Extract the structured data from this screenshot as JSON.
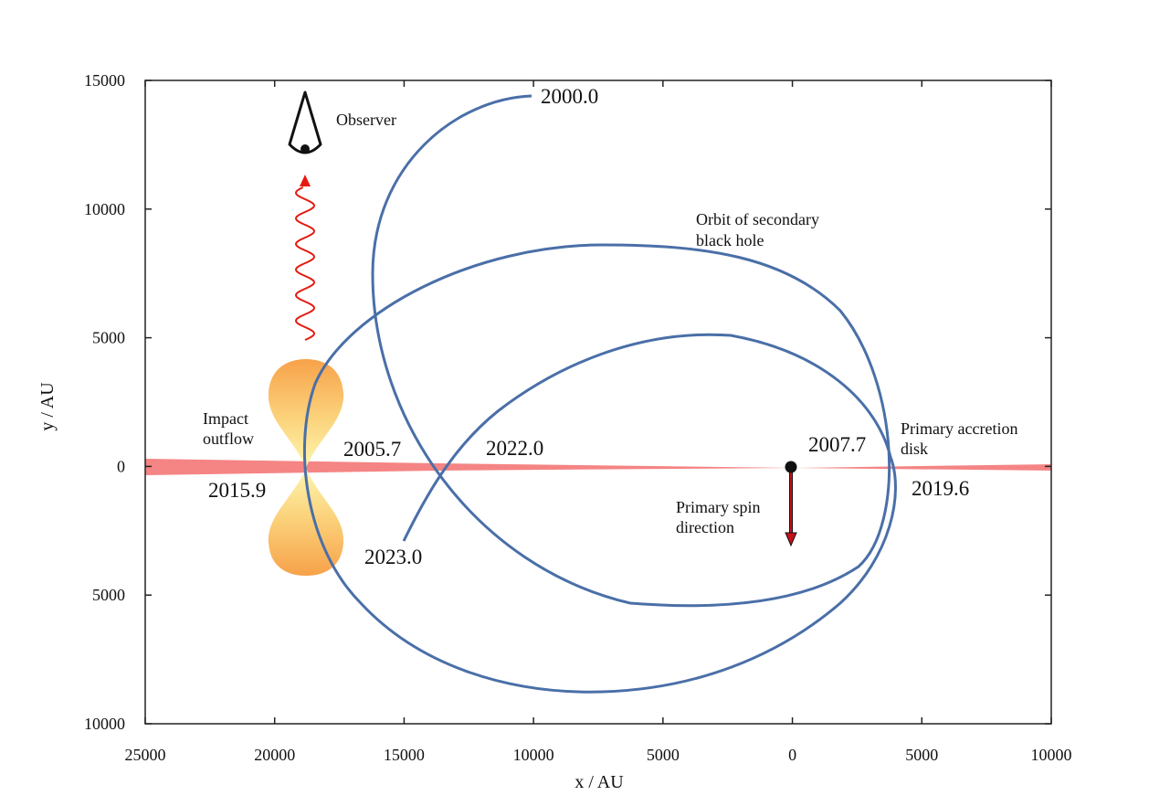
{
  "xaxis": {
    "label": "x / AU",
    "ticks": [
      {
        "value": 25000,
        "label": "25000"
      },
      {
        "value": 20000,
        "label": "20000"
      },
      {
        "value": 15000,
        "label": "15000"
      },
      {
        "value": 10000,
        "label": "10000"
      },
      {
        "value": 5000,
        "label": "5000"
      },
      {
        "value": 0,
        "label": "0"
      },
      {
        "value": -5000,
        "label": "5000"
      },
      {
        "value": -10000,
        "label": "10000"
      }
    ]
  },
  "yaxis": {
    "label": "y / AU",
    "ticks": [
      {
        "value": 15000,
        "label": "15000"
      },
      {
        "value": 10000,
        "label": "10000"
      },
      {
        "value": 5000,
        "label": "5000"
      },
      {
        "value": 0,
        "label": "0"
      },
      {
        "value": -5000,
        "label": "5000"
      },
      {
        "value": -10000,
        "label": "10000"
      }
    ]
  },
  "annotations": {
    "observer": "Observer",
    "orbit_line1": "Orbit of secondary",
    "orbit_line2": "black hole",
    "impact_line1": "Impact",
    "impact_line2": "outflow",
    "disk_line1": "Primary accretion",
    "disk_line2": "disk",
    "spin_line1": "Primary spin",
    "spin_line2": "direction"
  },
  "epochs": [
    {
      "label": "2000.0"
    },
    {
      "label": "2005.7"
    },
    {
      "label": "2007.7"
    },
    {
      "label": "2015.9"
    },
    {
      "label": "2019.6"
    },
    {
      "label": "2022.0"
    },
    {
      "label": "2023.0"
    }
  ],
  "colors": {
    "orbit": "#4a6fa8",
    "disk": "#f47a7a",
    "outflow": "#f7a24a",
    "spin_arrow": "#c8101a",
    "photon": "#e51a10"
  }
}
